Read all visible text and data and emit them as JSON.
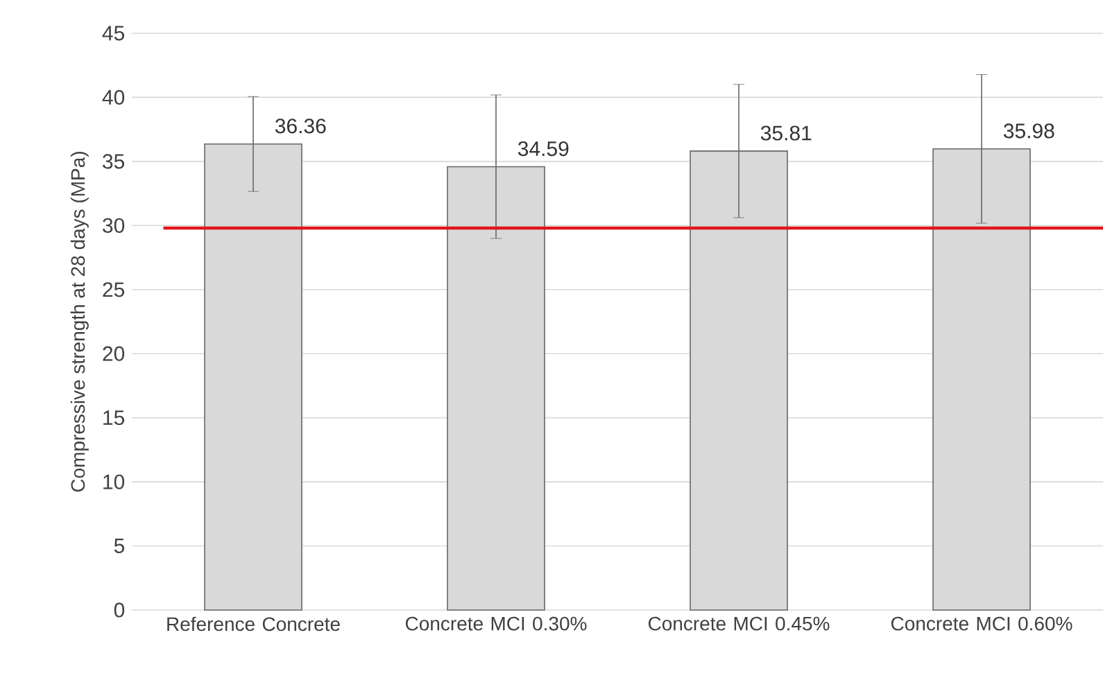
{
  "chart_data": {
    "type": "bar",
    "ylabel": "Compressive strength at 28 days (MPa)",
    "categories": [
      "Reference Concrete",
      "Concrete MCI 0.30%",
      "Concrete MCI 0.45%",
      "Concrete MCI 0.60%"
    ],
    "values": [
      36.36,
      34.59,
      35.81,
      35.98
    ],
    "errors": [
      3.7,
      5.6,
      5.2,
      5.8
    ],
    "color": "#d9d9d9",
    "data_labels": true,
    "ylim": [
      0,
      45
    ],
    "yticks": [
      0,
      5,
      10,
      15,
      20,
      25,
      30,
      35,
      40,
      45
    ],
    "grid": "y",
    "ref_lines": [
      {
        "axis": "y",
        "value": 29.8,
        "color": "#e0161b"
      }
    ]
  }
}
